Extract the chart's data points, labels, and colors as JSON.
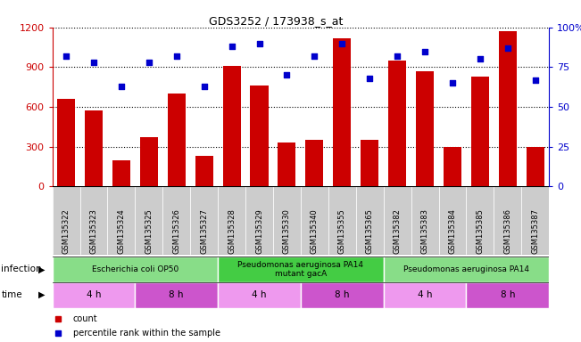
{
  "title": "GDS3252 / 173938_s_at",
  "samples": [
    "GSM135322",
    "GSM135323",
    "GSM135324",
    "GSM135325",
    "GSM135326",
    "GSM135327",
    "GSM135328",
    "GSM135329",
    "GSM135330",
    "GSM135340",
    "GSM135355",
    "GSM135365",
    "GSM135382",
    "GSM135383",
    "GSM135384",
    "GSM135385",
    "GSM135386",
    "GSM135387"
  ],
  "counts": [
    660,
    570,
    200,
    370,
    700,
    230,
    910,
    760,
    330,
    350,
    1120,
    350,
    950,
    870,
    300,
    830,
    1170,
    300
  ],
  "percentiles": [
    82,
    78,
    63,
    78,
    82,
    63,
    88,
    90,
    70,
    82,
    90,
    68,
    82,
    85,
    65,
    80,
    87,
    67
  ],
  "ylim_left": [
    0,
    1200
  ],
  "ylim_right": [
    0,
    100
  ],
  "yticks_left": [
    0,
    300,
    600,
    900,
    1200
  ],
  "yticks_right": [
    0,
    25,
    50,
    75,
    100
  ],
  "bar_color": "#cc0000",
  "dot_color": "#0000cc",
  "bg_color": "#ffffff",
  "infection_groups": [
    {
      "label": "Escherichia coli OP50",
      "start": 0,
      "end": 6,
      "color": "#88dd88"
    },
    {
      "label": "Pseudomonas aeruginosa PA14\nmutant gacA",
      "start": 6,
      "end": 12,
      "color": "#44cc44"
    },
    {
      "label": "Pseudomonas aeruginosa PA14",
      "start": 12,
      "end": 18,
      "color": "#88dd88"
    }
  ],
  "time_groups": [
    {
      "label": "4 h",
      "start": 0,
      "end": 3,
      "color": "#ee99ee"
    },
    {
      "label": "8 h",
      "start": 3,
      "end": 6,
      "color": "#cc55cc"
    },
    {
      "label": "4 h",
      "start": 6,
      "end": 9,
      "color": "#ee99ee"
    },
    {
      "label": "8 h",
      "start": 9,
      "end": 12,
      "color": "#cc55cc"
    },
    {
      "label": "4 h",
      "start": 12,
      "end": 15,
      "color": "#ee99ee"
    },
    {
      "label": "8 h",
      "start": 15,
      "end": 18,
      "color": "#cc55cc"
    }
  ],
  "left_label_color": "#cc0000",
  "right_label_color": "#0000cc",
  "xtick_bg": "#cccccc",
  "legend_items": [
    {
      "label": "count",
      "color": "#cc0000"
    },
    {
      "label": "percentile rank within the sample",
      "color": "#0000cc"
    }
  ]
}
